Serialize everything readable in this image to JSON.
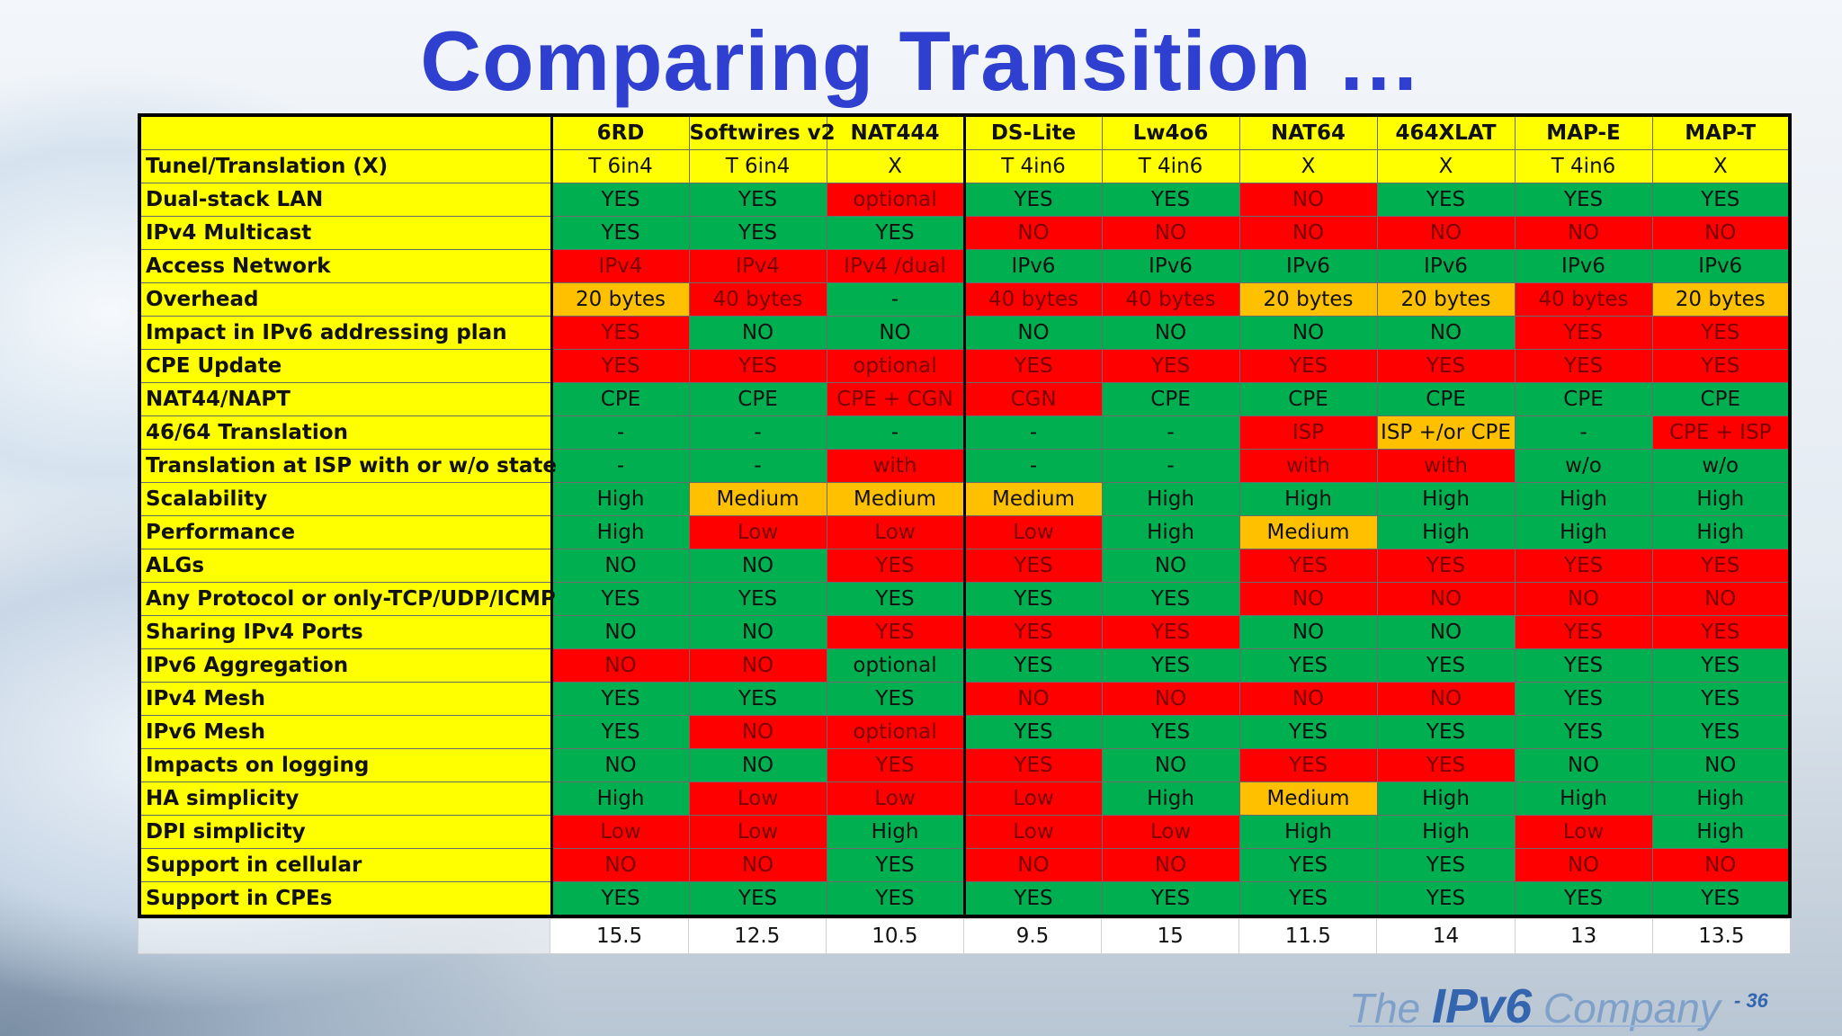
{
  "title": "Comparing Transition …",
  "columns": [
    "6RD",
    "Softwires v2",
    "NAT444",
    "DS-Lite",
    "Lw4o6",
    "NAT64",
    "464XLAT",
    "MAP-E",
    "MAP-T"
  ],
  "colors": {
    "green": "#00b050",
    "red": "#ff0000",
    "orange": "#ffc000",
    "yellow": "#ffff00",
    "title_blue": "#2f3fd0"
  },
  "rows": [
    {
      "label": "Tunel/Translation (X)",
      "cells": [
        [
          "T 6in4",
          "y"
        ],
        [
          "T 6in4",
          "y"
        ],
        [
          "X",
          "y"
        ],
        [
          "T 4in6",
          "y"
        ],
        [
          "T 4in6",
          "y"
        ],
        [
          "X",
          "y"
        ],
        [
          "X",
          "y"
        ],
        [
          "T 4in6",
          "y"
        ],
        [
          "X",
          "y"
        ]
      ]
    },
    {
      "label": "Dual-stack LAN",
      "cells": [
        [
          "YES",
          "g"
        ],
        [
          "YES",
          "g"
        ],
        [
          "optional",
          "r"
        ],
        [
          "YES",
          "g"
        ],
        [
          "YES",
          "g"
        ],
        [
          "NO",
          "r"
        ],
        [
          "YES",
          "g"
        ],
        [
          "YES",
          "g"
        ],
        [
          "YES",
          "g"
        ]
      ]
    },
    {
      "label": "IPv4 Multicast",
      "cells": [
        [
          "YES",
          "g"
        ],
        [
          "YES",
          "g"
        ],
        [
          "YES",
          "g"
        ],
        [
          "NO",
          "r"
        ],
        [
          "NO",
          "r"
        ],
        [
          "NO",
          "r"
        ],
        [
          "NO",
          "r"
        ],
        [
          "NO",
          "r"
        ],
        [
          "NO",
          "r"
        ]
      ]
    },
    {
      "label": "Access Network",
      "cells": [
        [
          "IPv4",
          "r"
        ],
        [
          "IPv4",
          "r"
        ],
        [
          "IPv4 /dual",
          "r"
        ],
        [
          "IPv6",
          "g"
        ],
        [
          "IPv6",
          "g"
        ],
        [
          "IPv6",
          "g"
        ],
        [
          "IPv6",
          "g"
        ],
        [
          "IPv6",
          "g"
        ],
        [
          "IPv6",
          "g"
        ]
      ]
    },
    {
      "label": "Overhead",
      "cells": [
        [
          "20 bytes",
          "o"
        ],
        [
          "40 bytes",
          "r"
        ],
        [
          "-",
          "g"
        ],
        [
          "40 bytes",
          "r"
        ],
        [
          "40 bytes",
          "r"
        ],
        [
          "20 bytes",
          "o"
        ],
        [
          "20 bytes",
          "o"
        ],
        [
          "40 bytes",
          "r"
        ],
        [
          "20 bytes",
          "o"
        ]
      ]
    },
    {
      "label": "Impact in IPv6 addressing plan",
      "cells": [
        [
          "YES",
          "r"
        ],
        [
          "NO",
          "g"
        ],
        [
          "NO",
          "g"
        ],
        [
          "NO",
          "g"
        ],
        [
          "NO",
          "g"
        ],
        [
          "NO",
          "g"
        ],
        [
          "NO",
          "g"
        ],
        [
          "YES",
          "r"
        ],
        [
          "YES",
          "r"
        ]
      ]
    },
    {
      "label": "CPE Update",
      "cells": [
        [
          "YES",
          "r"
        ],
        [
          "YES",
          "r"
        ],
        [
          "optional",
          "r"
        ],
        [
          "YES",
          "r"
        ],
        [
          "YES",
          "r"
        ],
        [
          "YES",
          "r"
        ],
        [
          "YES",
          "r"
        ],
        [
          "YES",
          "r"
        ],
        [
          "YES",
          "r"
        ]
      ]
    },
    {
      "label": "NAT44/NAPT",
      "cells": [
        [
          "CPE",
          "g"
        ],
        [
          "CPE",
          "g"
        ],
        [
          "CPE + CGN",
          "r"
        ],
        [
          "CGN",
          "r"
        ],
        [
          "CPE",
          "g"
        ],
        [
          "CPE",
          "g"
        ],
        [
          "CPE",
          "g"
        ],
        [
          "CPE",
          "g"
        ],
        [
          "CPE",
          "g"
        ]
      ]
    },
    {
      "label": "46/64 Translation",
      "cells": [
        [
          "-",
          "g"
        ],
        [
          "-",
          "g"
        ],
        [
          "-",
          "g"
        ],
        [
          "-",
          "g"
        ],
        [
          "-",
          "g"
        ],
        [
          "ISP",
          "r"
        ],
        [
          "ISP +/or CPE",
          "o"
        ],
        [
          "-",
          "g"
        ],
        [
          "CPE + ISP",
          "r"
        ]
      ]
    },
    {
      "label": "Translation at ISP with or w/o state",
      "cells": [
        [
          "-",
          "g"
        ],
        [
          "-",
          "g"
        ],
        [
          "with",
          "r"
        ],
        [
          "-",
          "g"
        ],
        [
          "-",
          "g"
        ],
        [
          "with",
          "r"
        ],
        [
          "with",
          "r"
        ],
        [
          "w/o",
          "g"
        ],
        [
          "w/o",
          "g"
        ]
      ]
    },
    {
      "label": "Scalability",
      "cells": [
        [
          "High",
          "g"
        ],
        [
          "Medium",
          "o"
        ],
        [
          "Medium",
          "o"
        ],
        [
          "Medium",
          "o"
        ],
        [
          "High",
          "g"
        ],
        [
          "High",
          "g"
        ],
        [
          "High",
          "g"
        ],
        [
          "High",
          "g"
        ],
        [
          "High",
          "g"
        ]
      ]
    },
    {
      "label": "Performance",
      "cells": [
        [
          "High",
          "g"
        ],
        [
          "Low",
          "r"
        ],
        [
          "Low",
          "r"
        ],
        [
          "Low",
          "r"
        ],
        [
          "High",
          "g"
        ],
        [
          "Medium",
          "o"
        ],
        [
          "High",
          "g"
        ],
        [
          "High",
          "g"
        ],
        [
          "High",
          "g"
        ]
      ]
    },
    {
      "label": "ALGs",
      "cells": [
        [
          "NO",
          "g"
        ],
        [
          "NO",
          "g"
        ],
        [
          "YES",
          "r"
        ],
        [
          "YES",
          "r"
        ],
        [
          "NO",
          "g"
        ],
        [
          "YES",
          "r"
        ],
        [
          "YES",
          "r"
        ],
        [
          "YES",
          "r"
        ],
        [
          "YES",
          "r"
        ]
      ]
    },
    {
      "label": "Any Protocol or only-TCP/UDP/ICMP",
      "cells": [
        [
          "YES",
          "g"
        ],
        [
          "YES",
          "g"
        ],
        [
          "YES",
          "g"
        ],
        [
          "YES",
          "g"
        ],
        [
          "YES",
          "g"
        ],
        [
          "NO",
          "r"
        ],
        [
          "NO",
          "r"
        ],
        [
          "NO",
          "r"
        ],
        [
          "NO",
          "r"
        ]
      ]
    },
    {
      "label": "Sharing IPv4 Ports",
      "cells": [
        [
          "NO",
          "g"
        ],
        [
          "NO",
          "g"
        ],
        [
          "YES",
          "r"
        ],
        [
          "YES",
          "r"
        ],
        [
          "YES",
          "r"
        ],
        [
          "NO",
          "g"
        ],
        [
          "NO",
          "g"
        ],
        [
          "YES",
          "r"
        ],
        [
          "YES",
          "r"
        ]
      ]
    },
    {
      "label": "IPv6 Aggregation",
      "cells": [
        [
          "NO",
          "r"
        ],
        [
          "NO",
          "r"
        ],
        [
          "optional",
          "g"
        ],
        [
          "YES",
          "g"
        ],
        [
          "YES",
          "g"
        ],
        [
          "YES",
          "g"
        ],
        [
          "YES",
          "g"
        ],
        [
          "YES",
          "g"
        ],
        [
          "YES",
          "g"
        ]
      ]
    },
    {
      "label": "IPv4 Mesh",
      "cells": [
        [
          "YES",
          "g"
        ],
        [
          "YES",
          "g"
        ],
        [
          "YES",
          "g"
        ],
        [
          "NO",
          "r"
        ],
        [
          "NO",
          "r"
        ],
        [
          "NO",
          "r"
        ],
        [
          "NO",
          "r"
        ],
        [
          "YES",
          "g"
        ],
        [
          "YES",
          "g"
        ]
      ]
    },
    {
      "label": "IPv6 Mesh",
      "cells": [
        [
          "YES",
          "g"
        ],
        [
          "NO",
          "r"
        ],
        [
          "optional",
          "r"
        ],
        [
          "YES",
          "g"
        ],
        [
          "YES",
          "g"
        ],
        [
          "YES",
          "g"
        ],
        [
          "YES",
          "g"
        ],
        [
          "YES",
          "g"
        ],
        [
          "YES",
          "g"
        ]
      ]
    },
    {
      "label": "Impacts on logging",
      "cells": [
        [
          "NO",
          "g"
        ],
        [
          "NO",
          "g"
        ],
        [
          "YES",
          "r"
        ],
        [
          "YES",
          "r"
        ],
        [
          "NO",
          "g"
        ],
        [
          "YES",
          "r"
        ],
        [
          "YES",
          "r"
        ],
        [
          "NO",
          "g"
        ],
        [
          "NO",
          "g"
        ]
      ]
    },
    {
      "label": "HA simplicity",
      "cells": [
        [
          "High",
          "g"
        ],
        [
          "Low",
          "r"
        ],
        [
          "Low",
          "r"
        ],
        [
          "Low",
          "r"
        ],
        [
          "High",
          "g"
        ],
        [
          "Medium",
          "o"
        ],
        [
          "High",
          "g"
        ],
        [
          "High",
          "g"
        ],
        [
          "High",
          "g"
        ]
      ]
    },
    {
      "label": "DPI simplicity",
      "cells": [
        [
          "Low",
          "r"
        ],
        [
          "Low",
          "r"
        ],
        [
          "High",
          "g"
        ],
        [
          "Low",
          "r"
        ],
        [
          "Low",
          "r"
        ],
        [
          "High",
          "g"
        ],
        [
          "High",
          "g"
        ],
        [
          "Low",
          "r"
        ],
        [
          "High",
          "g"
        ]
      ]
    },
    {
      "label": "Support in cellular",
      "cells": [
        [
          "NO",
          "r"
        ],
        [
          "NO",
          "r"
        ],
        [
          "YES",
          "g"
        ],
        [
          "NO",
          "r"
        ],
        [
          "NO",
          "r"
        ],
        [
          "YES",
          "g"
        ],
        [
          "YES",
          "g"
        ],
        [
          "NO",
          "r"
        ],
        [
          "NO",
          "r"
        ]
      ]
    },
    {
      "label": "Support in CPEs",
      "cells": [
        [
          "YES",
          "g"
        ],
        [
          "YES",
          "g"
        ],
        [
          "YES",
          "g"
        ],
        [
          "YES",
          "g"
        ],
        [
          "YES",
          "g"
        ],
        [
          "YES",
          "g"
        ],
        [
          "YES",
          "g"
        ],
        [
          "YES",
          "g"
        ],
        [
          "YES",
          "g"
        ]
      ]
    }
  ],
  "totals": [
    "15.5",
    "12.5",
    "10.5",
    "9.5",
    "15",
    "11.5",
    "14",
    "13",
    "13.5"
  ],
  "logo": {
    "prefix": "The ",
    "brand": "IPv6",
    "suffix": " Company"
  },
  "page_number": "- 36"
}
